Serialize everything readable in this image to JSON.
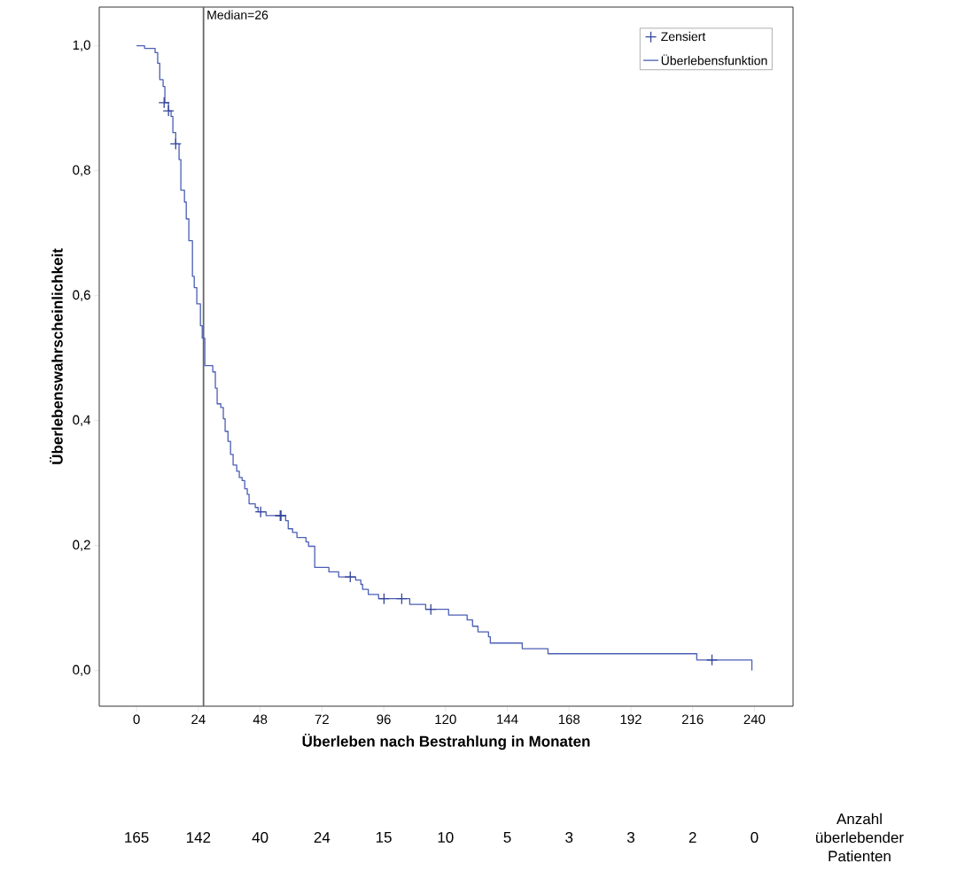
{
  "chart_data": {
    "type": "step",
    "xlabel": "Überleben nach Bestrahlung in Monaten",
    "ylabel": "Überlebenswahrscheinlichkeit",
    "xlim": [
      -14.5,
      255
    ],
    "ylim": [
      -0.057,
      1.062
    ],
    "xticks": [
      0,
      24,
      48,
      72,
      96,
      120,
      144,
      168,
      192,
      216,
      240
    ],
    "yticks": [
      {
        "value": 0,
        "label": "0,0"
      },
      {
        "value": 0.2,
        "label": "0,2"
      },
      {
        "value": 0.4,
        "label": "0,4"
      },
      {
        "value": 0.6,
        "label": "0,6"
      },
      {
        "value": 0.8,
        "label": "0,8"
      },
      {
        "value": 1,
        "label": "1,0"
      }
    ],
    "grid": false,
    "legend": "top right",
    "series": [
      {
        "type": "scatter",
        "name": "Zensiert",
        "color": "#33449a",
        "marker": "cross",
        "x": [
          10.7,
          12.4,
          15.2,
          48.2,
          55.8,
          56.1,
          83.0,
          96.1,
          103.0,
          114.3,
          223.5
        ],
        "values": [
          0.909,
          0.896,
          0.843,
          0.254,
          0.248,
          0.248,
          0.15,
          0.115,
          0.115,
          0.098,
          0.017
        ]
      },
      {
        "name": "Überlebensfunktion",
        "color": "#4b5fb4",
        "marker": "none",
        "line_style": "solid",
        "x": [
          0,
          3.1,
          7.2,
          8.2,
          9,
          10.3,
          11,
          12.4,
          13.4,
          14.1,
          15.2,
          16.5,
          17.2,
          18.6,
          19.3,
          20.3,
          21.7,
          22.4,
          23.4,
          24.8,
          25.5,
          26.5,
          29.6,
          30.6,
          31.3,
          32.7,
          33.7,
          34.4,
          35.5,
          36.5,
          37.5,
          38.9,
          39.9,
          41.0,
          42.0,
          43.0,
          43.7,
          46.1,
          47.2,
          50.3,
          57.9,
          58.9,
          60.6,
          62.3,
          65.8,
          66.8,
          69.2,
          74.7,
          78.5,
          85.1,
          87.1,
          87.8,
          90.0,
          94.0,
          106.1,
          112.3,
          121.2,
          128.4,
          130.5,
          132.6,
          136.7,
          137.4,
          149.8,
          159.8,
          217.6,
          239
        ],
        "values": [
          1.0,
          0.996,
          0.989,
          0.972,
          0.946,
          0.935,
          0.909,
          0.896,
          0.887,
          0.861,
          0.843,
          0.818,
          0.769,
          0.75,
          0.723,
          0.688,
          0.631,
          0.613,
          0.587,
          0.552,
          0.532,
          0.488,
          0.478,
          0.452,
          0.427,
          0.421,
          0.403,
          0.383,
          0.367,
          0.346,
          0.329,
          0.319,
          0.309,
          0.304,
          0.291,
          0.282,
          0.267,
          0.261,
          0.254,
          0.248,
          0.24,
          0.227,
          0.221,
          0.213,
          0.206,
          0.199,
          0.165,
          0.158,
          0.15,
          0.145,
          0.138,
          0.13,
          0.122,
          0.115,
          0.106,
          0.098,
          0.089,
          0.081,
          0.071,
          0.062,
          0.054,
          0.044,
          0.035,
          0.027,
          0.017,
          0.0
        ]
      }
    ],
    "ref_lines": [
      {
        "axis": "x",
        "value": 26,
        "label": "Median=26",
        "color": "#666666"
      }
    ],
    "annotations": [
      "165",
      "142",
      "40",
      "24",
      "15",
      "10",
      "5",
      "3",
      "3",
      "2",
      "0",
      "Anzahl überlebender Patienten"
    ]
  }
}
